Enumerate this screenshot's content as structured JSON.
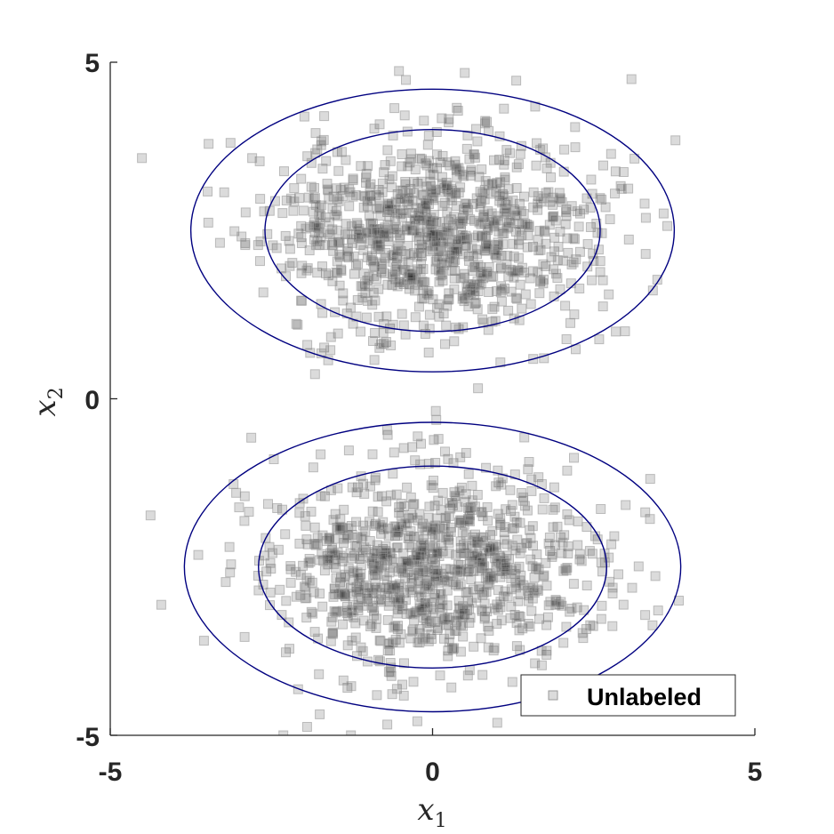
{
  "chart_data": {
    "type": "scatter",
    "title": "",
    "xlabel": {
      "base": "x",
      "sub": "1"
    },
    "ylabel": {
      "base": "x",
      "sub": "2"
    },
    "xlim": [
      -5,
      5
    ],
    "ylim": [
      -5,
      5
    ],
    "xticks": [
      "-5",
      "0",
      "5"
    ],
    "yticks": [
      "5",
      "0",
      "-5"
    ],
    "grid": false,
    "legend": {
      "placement": "bottom-right",
      "entries": [
        "Unlabeled"
      ]
    },
    "marker": {
      "shape": "square",
      "color": "#000000",
      "alpha": 0.14,
      "edge_color": "#9a9a9a"
    },
    "contour_color": "#000080",
    "clusters": [
      {
        "center": [
          0,
          2.5
        ],
        "sigma": [
          1.3,
          0.75
        ],
        "count": 1000,
        "seed": 11
      },
      {
        "center": [
          0,
          -2.5
        ],
        "sigma": [
          1.3,
          0.75
        ],
        "count": 1000,
        "seed": 29
      }
    ],
    "contours": [
      {
        "center": [
          0,
          2.5
        ],
        "radii": [
          2.6,
          1.5
        ]
      },
      {
        "center": [
          0,
          2.5
        ],
        "radii": [
          3.75,
          2.1
        ]
      },
      {
        "center": [
          0,
          -2.5
        ],
        "radii": [
          2.7,
          1.5
        ]
      },
      {
        "center": [
          0,
          -2.5
        ],
        "radii": [
          3.85,
          2.15
        ]
      }
    ]
  }
}
